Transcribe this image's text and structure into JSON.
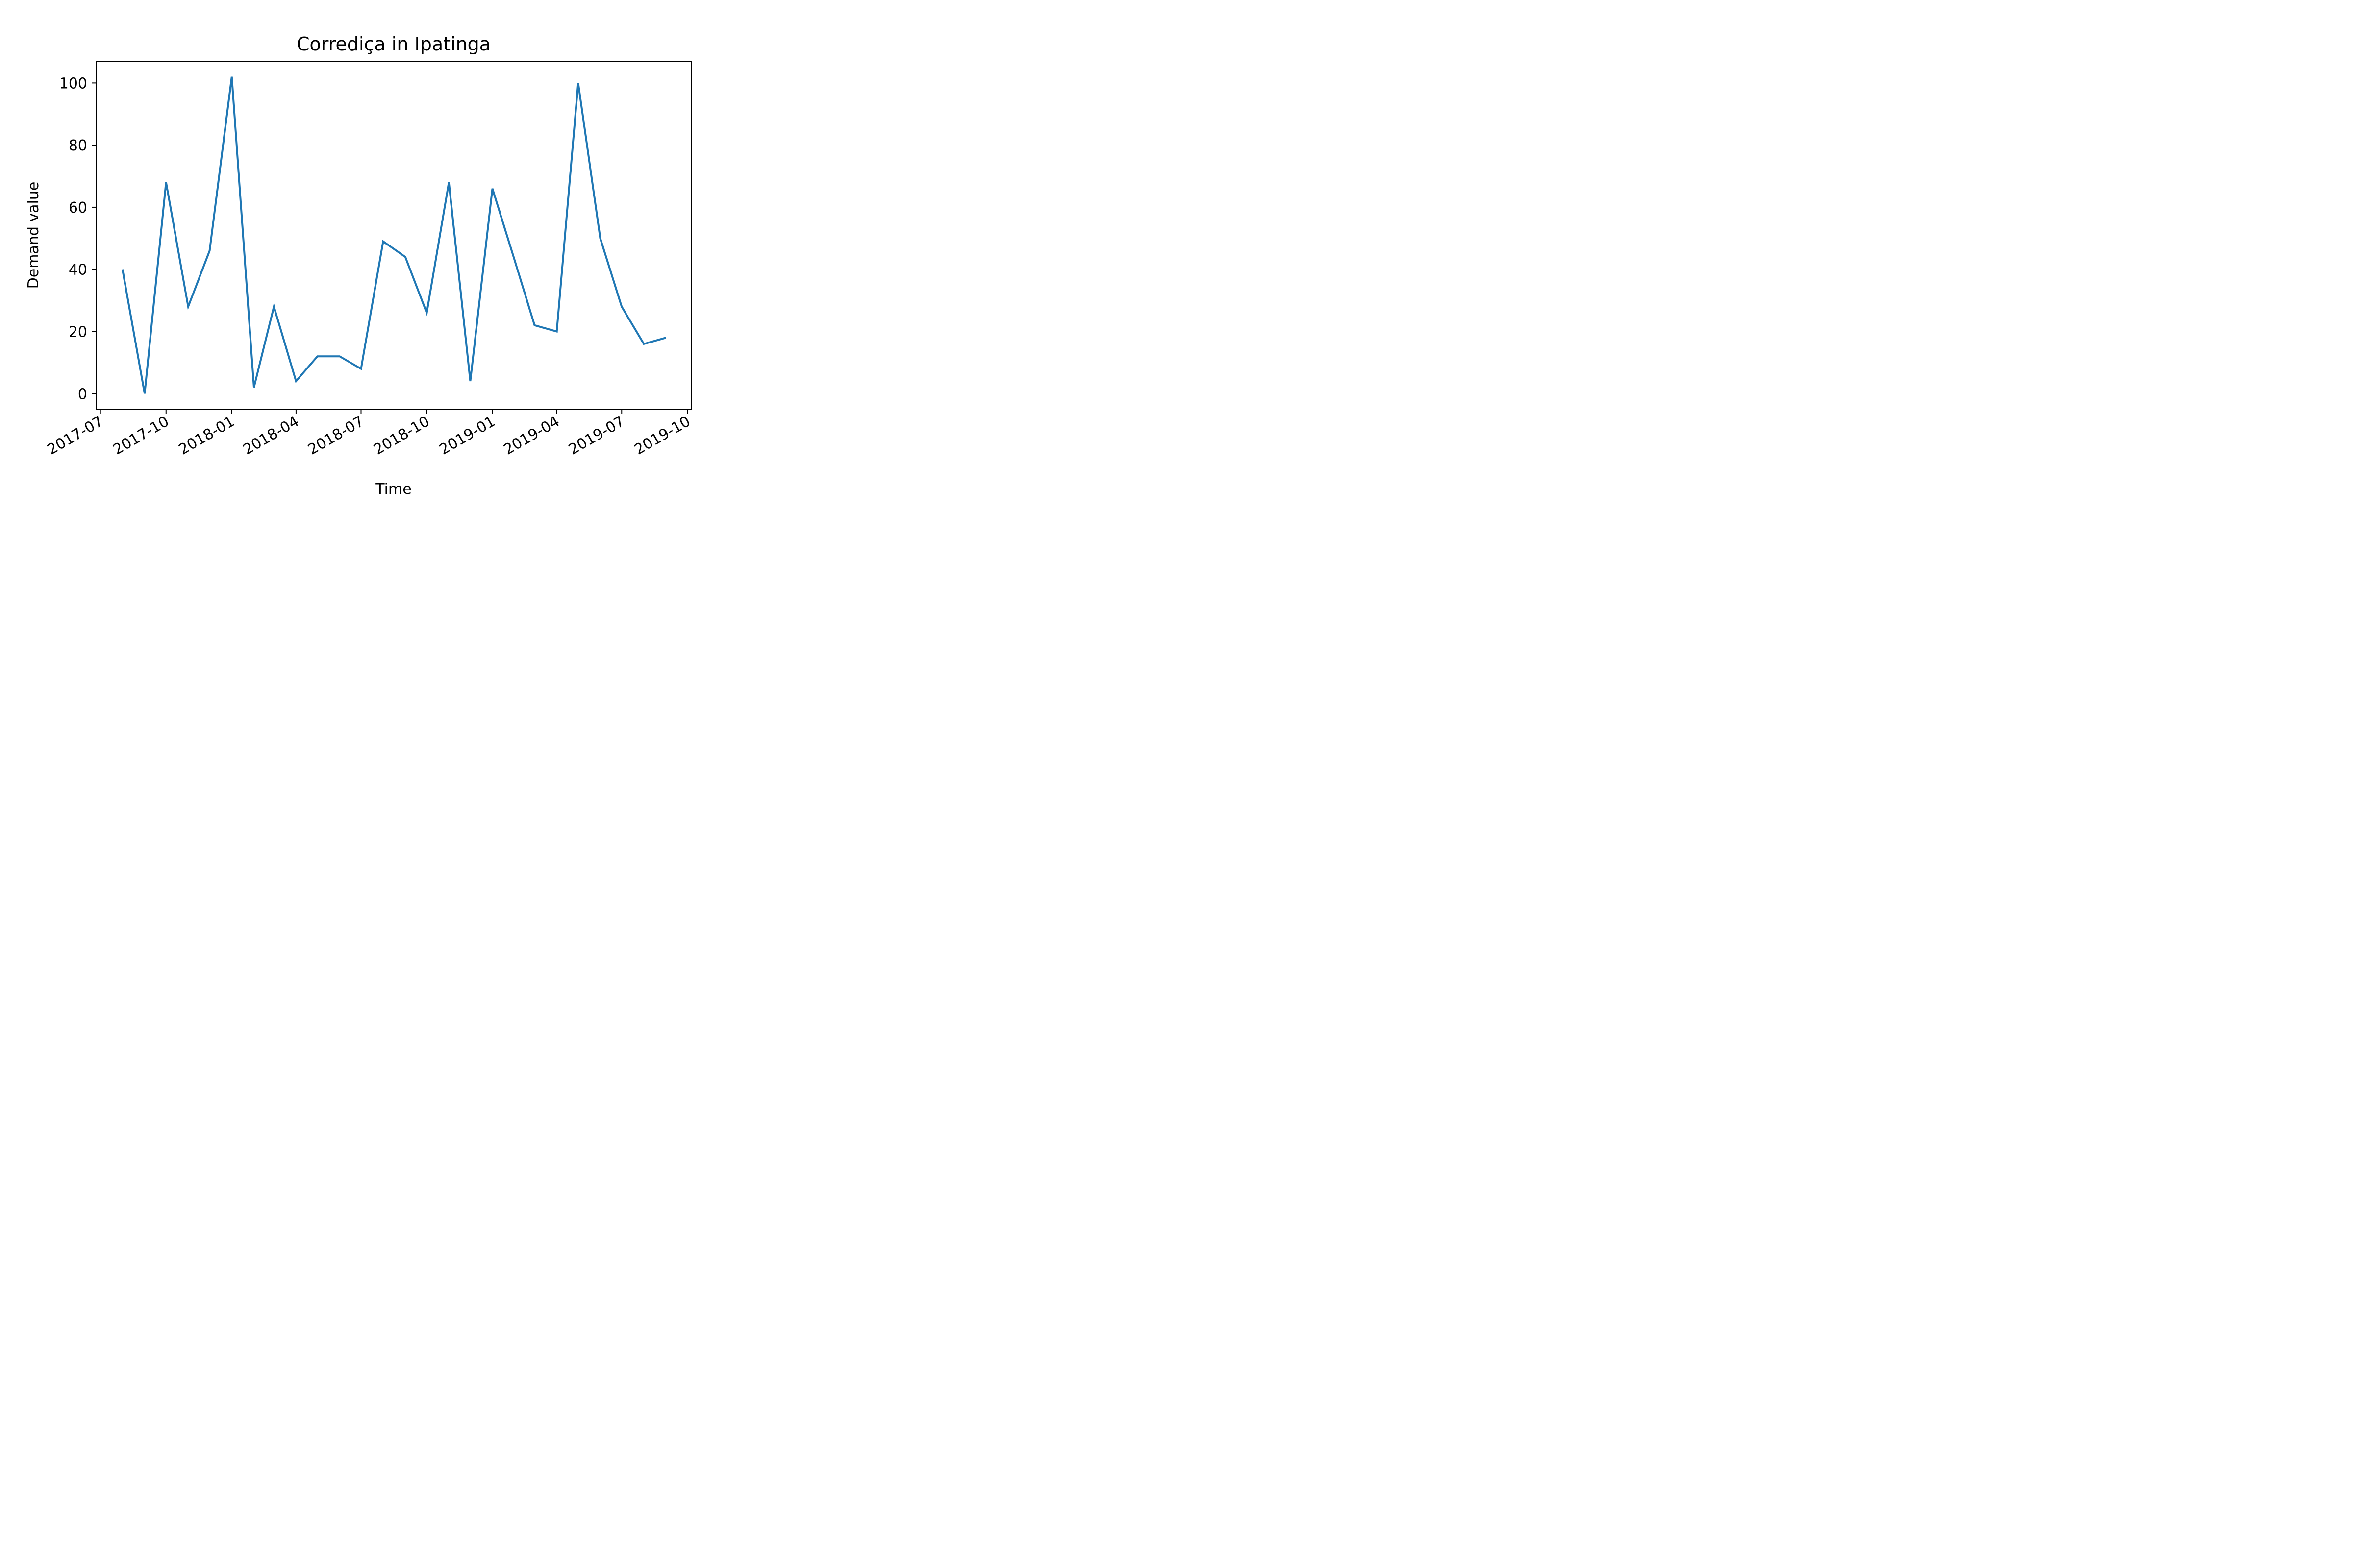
{
  "chart_data": {
    "type": "line",
    "title": "Corrediça in Ipatinga",
    "xlabel": "Time",
    "ylabel": "Demand value",
    "x": [
      "2017-08",
      "2017-09",
      "2017-10",
      "2017-11",
      "2017-12",
      "2018-01",
      "2018-02",
      "2018-03",
      "2018-04",
      "2018-05",
      "2018-06",
      "2018-07",
      "2018-08",
      "2018-09",
      "2018-10",
      "2018-11",
      "2018-12",
      "2019-01",
      "2019-02",
      "2019-03",
      "2019-04",
      "2019-05",
      "2019-06",
      "2019-07",
      "2019-08",
      "2019-09"
    ],
    "series": [
      {
        "values": [
          40,
          0,
          68,
          28,
          46,
          102,
          2,
          28,
          4,
          12,
          12,
          8,
          49,
          44,
          26,
          68,
          4,
          66,
          43,
          22,
          20,
          100,
          50,
          28,
          16,
          18
        ]
      }
    ],
    "xlim": [
      "2017-06-25",
      "2019-10-07"
    ],
    "ylim": [
      -5,
      107
    ],
    "xticks": [
      "2017-07",
      "2017-10",
      "2018-01",
      "2018-04",
      "2018-07",
      "2018-10",
      "2019-01",
      "2019-04",
      "2019-07",
      "2019-10"
    ],
    "yticks": [
      0,
      20,
      40,
      60,
      80,
      100
    ],
    "grid": false,
    "line_color": "#1f77b4"
  }
}
